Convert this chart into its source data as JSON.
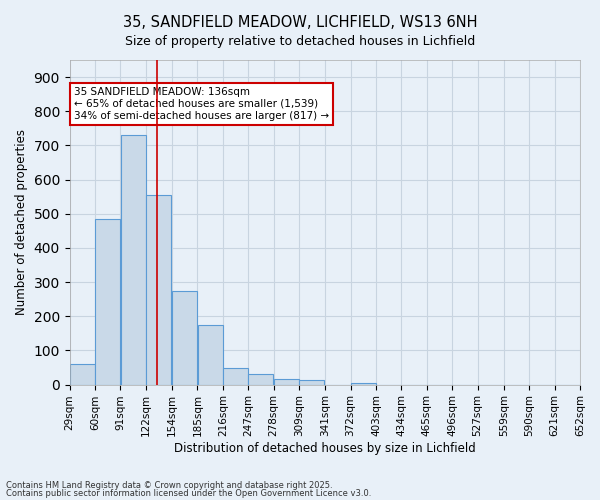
{
  "title1": "35, SANDFIELD MEADOW, LICHFIELD, WS13 6NH",
  "title2": "Size of property relative to detached houses in Lichfield",
  "xlabel": "Distribution of detached houses by size in Lichfield",
  "ylabel": "Number of detached properties",
  "bins": [
    29,
    60,
    91,
    122,
    154,
    185,
    216,
    247,
    278,
    309,
    341,
    372,
    403,
    434,
    465,
    496,
    527,
    559,
    590,
    621,
    652
  ],
  "bin_labels": [
    "29sqm",
    "60sqm",
    "91sqm",
    "122sqm",
    "154sqm",
    "185sqm",
    "216sqm",
    "247sqm",
    "278sqm",
    "309sqm",
    "341sqm",
    "372sqm",
    "403sqm",
    "434sqm",
    "465sqm",
    "496sqm",
    "527sqm",
    "559sqm",
    "590sqm",
    "621sqm",
    "652sqm"
  ],
  "values": [
    60,
    485,
    730,
    555,
    275,
    175,
    50,
    32,
    15,
    12,
    0,
    5,
    0,
    0,
    0,
    0,
    0,
    0,
    0,
    0
  ],
  "bar_color": "#c9d9e8",
  "bar_edge_color": "#5b9bd5",
  "red_line_x": 136,
  "annotation_title": "35 SANDFIELD MEADOW: 136sqm",
  "annotation_line1": "← 65% of detached houses are smaller (1,539)",
  "annotation_line2": "34% of semi-detached houses are larger (817) →",
  "annotation_box_color": "#ffffff",
  "annotation_edge_color": "#cc0000",
  "red_line_color": "#cc0000",
  "ylim": [
    0,
    950
  ],
  "yticks": [
    0,
    100,
    200,
    300,
    400,
    500,
    600,
    700,
    800,
    900
  ],
  "grid_color": "#c8d4e0",
  "background_color": "#e8f0f8",
  "footer1": "Contains HM Land Registry data © Crown copyright and database right 2025.",
  "footer2": "Contains public sector information licensed under the Open Government Licence v3.0."
}
